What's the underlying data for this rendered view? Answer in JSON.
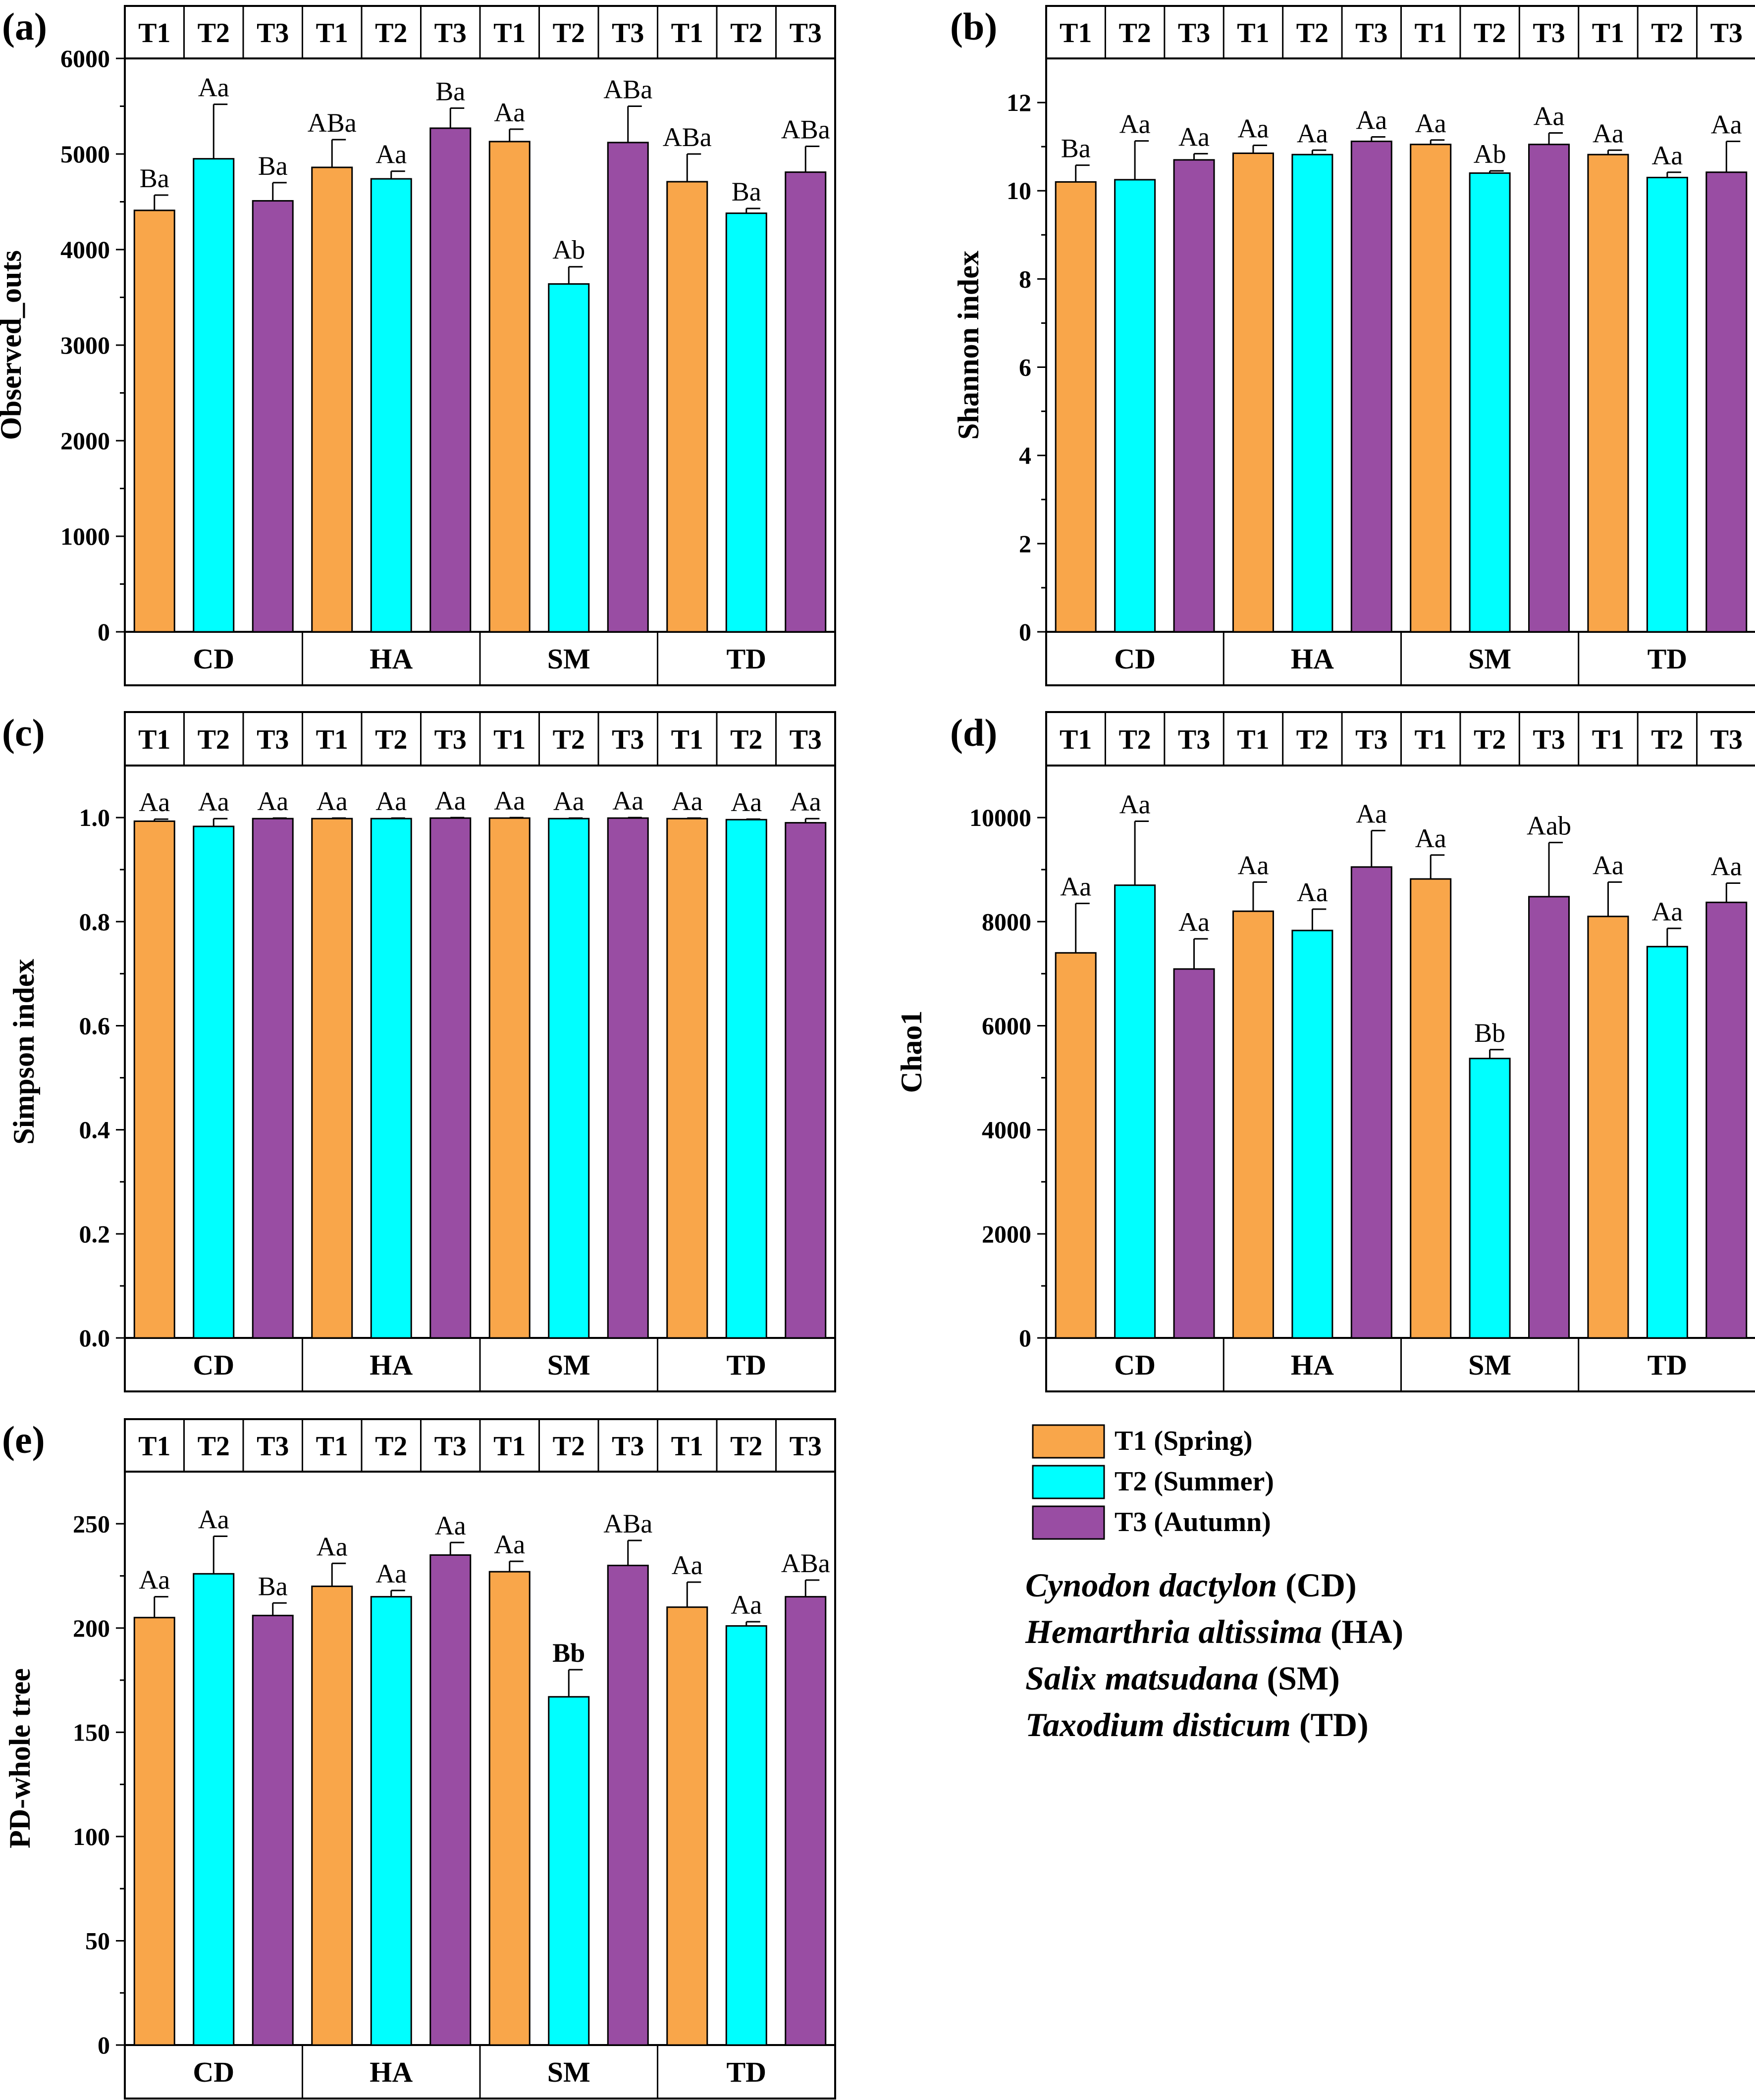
{
  "colors": {
    "T1": "#F9A64A",
    "T2": "#00FFFF",
    "T3": "#994DA3"
  },
  "legend": {
    "items": [
      {
        "key": "T1",
        "label": "T1 (Spring)"
      },
      {
        "key": "T2",
        "label": "T2 (Summer)"
      },
      {
        "key": "T3",
        "label": "T3 (Autumn)"
      }
    ],
    "species": [
      {
        "name": "Cynodon dactylon",
        "abbr": "(CD)"
      },
      {
        "name": "Hemarthria altissima",
        "abbr": "(HA)"
      },
      {
        "name": "Salix matsudana",
        "abbr": "(SM)"
      },
      {
        "name": "Taxodium disticum",
        "abbr": "(TD)"
      }
    ]
  },
  "chart_data": [
    {
      "type": "bar",
      "panel": "(a)",
      "ylabel": "Observed_outs",
      "ylim": [
        0,
        6000
      ],
      "yticks": [
        0,
        1000,
        2000,
        3000,
        4000,
        5000,
        6000
      ],
      "groups": [
        "CD",
        "HA",
        "SM",
        "TD"
      ],
      "seasons": [
        "T1",
        "T2",
        "T3"
      ],
      "values": [
        4410,
        4950,
        4510,
        4860,
        4740,
        5270,
        5130,
        3640,
        5120,
        4710,
        4380,
        4810
      ],
      "errors": [
        160,
        570,
        190,
        290,
        80,
        210,
        130,
        180,
        380,
        290,
        50,
        270
      ],
      "annotations": [
        "Ba",
        "Aa",
        "Ba",
        "ABa",
        "Aa",
        "Ba",
        "Aa",
        "Ab",
        "ABa",
        "ABa",
        "Ba",
        "ABa"
      ],
      "annotation_bold": [
        false,
        false,
        false,
        false,
        false,
        false,
        false,
        false,
        false,
        false,
        false,
        false
      ]
    },
    {
      "type": "bar",
      "panel": "(b)",
      "ylabel": "Shannon index",
      "ylim": [
        0,
        13
      ],
      "yticks": [
        0,
        2,
        4,
        6,
        8,
        10,
        12
      ],
      "groups": [
        "CD",
        "HA",
        "SM",
        "TD"
      ],
      "seasons": [
        "T1",
        "T2",
        "T3"
      ],
      "values": [
        10.2,
        10.25,
        10.7,
        10.85,
        10.82,
        11.12,
        11.05,
        10.4,
        11.05,
        10.82,
        10.3,
        10.42
      ],
      "errors": [
        0.38,
        0.88,
        0.14,
        0.18,
        0.1,
        0.1,
        0.1,
        0.05,
        0.26,
        0.1,
        0.12,
        0.7
      ],
      "annotations": [
        "Ba",
        "Aa",
        "Aa",
        "Aa",
        "Aa",
        "Aa",
        "Aa",
        "Ab",
        "Aa",
        "Aa",
        "Aa",
        "Aa"
      ],
      "annotation_bold": [
        false,
        false,
        false,
        false,
        false,
        false,
        false,
        false,
        false,
        false,
        false,
        false
      ]
    },
    {
      "type": "bar",
      "panel": "(c)",
      "ylabel": "Simpson index",
      "ylim": [
        0,
        1.1
      ],
      "yticks": [
        0.0,
        0.2,
        0.4,
        0.6,
        0.8,
        1.0
      ],
      "groups": [
        "CD",
        "HA",
        "SM",
        "TD"
      ],
      "seasons": [
        "T1",
        "T2",
        "T3"
      ],
      "values": [
        0.993,
        0.983,
        0.998,
        0.998,
        0.998,
        0.999,
        0.999,
        0.998,
        0.999,
        0.998,
        0.996,
        0.99
      ],
      "errors": [
        0.004,
        0.015,
        0.001,
        0.001,
        0.001,
        0.001,
        0.001,
        0.001,
        0.001,
        0.001,
        0.001,
        0.008
      ],
      "annotations": [
        "Aa",
        "Aa",
        "Aa",
        "Aa",
        "Aa",
        "Aa",
        "Aa",
        "Aa",
        "Aa",
        "Aa",
        "Aa",
        "Aa"
      ],
      "annotation_bold": [
        false,
        false,
        false,
        false,
        false,
        false,
        false,
        false,
        false,
        false,
        false,
        false
      ]
    },
    {
      "type": "bar",
      "panel": "(d)",
      "ylabel": "Chao1",
      "ylim": [
        0,
        11000
      ],
      "yticks": [
        0,
        2000,
        4000,
        6000,
        8000,
        10000
      ],
      "groups": [
        "CD",
        "HA",
        "SM",
        "TD"
      ],
      "seasons": [
        "T1",
        "T2",
        "T3"
      ],
      "values": [
        7400,
        8700,
        7090,
        8200,
        7830,
        9050,
        8820,
        5370,
        8480,
        8100,
        7520,
        8370
      ],
      "errors": [
        950,
        1230,
        580,
        560,
        410,
        700,
        460,
        170,
        1040,
        660,
        350,
        370
      ],
      "annotations": [
        "Aa",
        "Aa",
        "Aa",
        "Aa",
        "Aa",
        "Aa",
        "Aa",
        "Bb",
        "Aab",
        "Aa",
        "Aa",
        "Aa"
      ],
      "annotation_bold": [
        false,
        false,
        false,
        false,
        false,
        false,
        false,
        false,
        false,
        false,
        false,
        false
      ]
    },
    {
      "type": "bar",
      "panel": "(e)",
      "ylabel": "PD-whole tree",
      "ylim": [
        0,
        275
      ],
      "yticks": [
        0,
        50,
        100,
        150,
        200,
        250
      ],
      "groups": [
        "CD",
        "HA",
        "SM",
        "TD"
      ],
      "seasons": [
        "T1",
        "T2",
        "T3"
      ],
      "values": [
        205,
        226,
        206,
        220,
        215,
        235,
        227,
        167,
        230,
        210,
        201,
        215
      ],
      "errors": [
        10,
        18,
        6,
        11,
        3,
        6,
        5,
        13,
        12,
        12,
        2,
        8
      ],
      "annotations": [
        "Aa",
        "Aa",
        "Ba",
        "Aa",
        "Aa",
        "Aa",
        "Aa",
        "Bb",
        "ABa",
        "Aa",
        "Aa",
        "ABa"
      ],
      "annotation_bold": [
        false,
        false,
        false,
        false,
        false,
        false,
        false,
        true,
        false,
        false,
        false,
        false
      ]
    }
  ]
}
